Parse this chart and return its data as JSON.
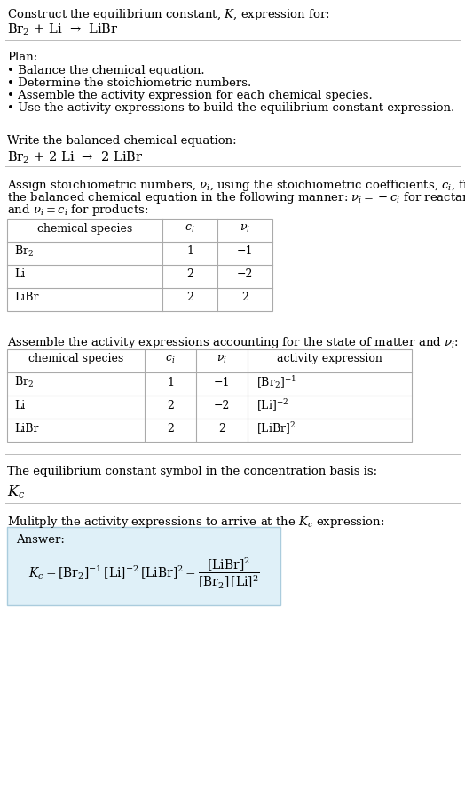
{
  "title_line1": "Construct the equilibrium constant, $K$, expression for:",
  "title_line2": "Br$_2$ + Li  →  LiBr",
  "plan_header": "Plan:",
  "plan_items": [
    "• Balance the chemical equation.",
    "• Determine the stoichiometric numbers.",
    "• Assemble the activity expression for each chemical species.",
    "• Use the activity expressions to build the equilibrium constant expression."
  ],
  "balanced_header": "Write the balanced chemical equation:",
  "balanced_eq": "Br$_2$ + 2 Li  →  2 LiBr",
  "stoich_intro_lines": [
    "Assign stoichiometric numbers, $\\nu_i$, using the stoichiometric coefficients, $c_i$, from",
    "the balanced chemical equation in the following manner: $\\nu_i = -c_i$ for reactants",
    "and $\\nu_i = c_i$ for products:"
  ],
  "table1_headers": [
    "chemical species",
    "$c_i$",
    "$\\nu_i$"
  ],
  "table1_rows": [
    [
      "Br$_2$",
      "1",
      "−1"
    ],
    [
      "Li",
      "2",
      "−2"
    ],
    [
      "LiBr",
      "2",
      "2"
    ]
  ],
  "activity_intro": "Assemble the activity expressions accounting for the state of matter and $\\nu_i$:",
  "table2_headers": [
    "chemical species",
    "$c_i$",
    "$\\nu_i$",
    "activity expression"
  ],
  "table2_rows": [
    [
      "Br$_2$",
      "1",
      "−1",
      "[Br$_2$]$^{-1}$"
    ],
    [
      "Li",
      "2",
      "−2",
      "[Li]$^{-2}$"
    ],
    [
      "LiBr",
      "2",
      "2",
      "[LiBr]$^{2}$"
    ]
  ],
  "kc_intro": "The equilibrium constant symbol in the concentration basis is:",
  "kc_symbol": "$K_c$",
  "multiply_intro": "Mulitply the activity expressions to arrive at the $K_c$ expression:",
  "answer_label": "Answer:",
  "answer_box_color": "#dff0f8",
  "answer_border_color": "#aaccdd",
  "bg_color": "#ffffff",
  "text_color": "#000000",
  "sep_line_color": "#bbbbbb",
  "table_line_color": "#aaaaaa",
  "font_size": 9.5,
  "title_font_size": 9.5,
  "eq_font_size": 10.5
}
